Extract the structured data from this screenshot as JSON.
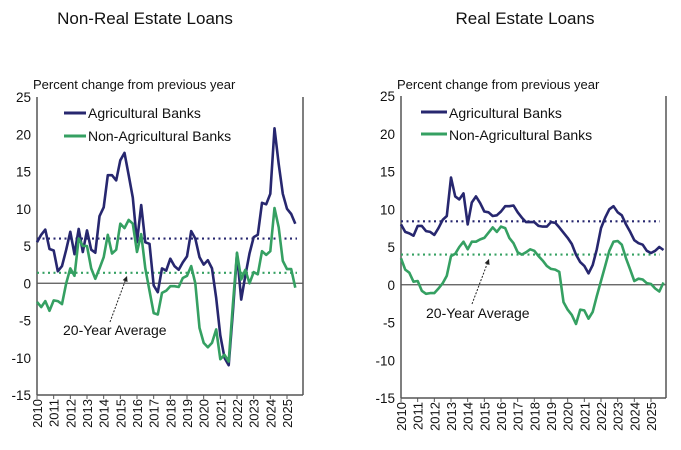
{
  "colors": {
    "agricultural": "#27276f",
    "non_agricultural": "#35a062",
    "axis": "#555555"
  },
  "chart_data": [
    {
      "type": "line",
      "title": "Non-Real Estate Loans",
      "ylabel": "Percent change from previous year",
      "ylim": [
        -15,
        25
      ],
      "yticks": [
        25,
        20,
        15,
        10,
        5,
        0,
        -5,
        -10,
        -15
      ],
      "xticks": [
        "2010",
        "2011",
        "2012",
        "2013",
        "2014",
        "2015",
        "2016",
        "2017",
        "2018",
        "2019",
        "2020",
        "2021",
        "2022",
        "2023",
        "2024",
        "2025"
      ],
      "x_frequency": "quarterly, 2010 Q1 onward",
      "grid": false,
      "legend_placement": "top-left",
      "annotation": "20-Year Average",
      "series": [
        {
          "name": "Agricultural Banks",
          "color_key": "agricultural",
          "average": 6.0,
          "values": [
            5.5,
            6.5,
            7.2,
            4.6,
            4.4,
            1.6,
            2.3,
            4.5,
            6.9,
            3.9,
            7.3,
            4.2,
            7.1,
            4.5,
            4.1,
            9.0,
            10.2,
            14.5,
            14.5,
            13.8,
            16.5,
            17.5,
            14.5,
            11.5,
            5.5,
            10.5,
            5.5,
            5.3,
            -0.3,
            -1.2,
            2.0,
            1.7,
            3.3,
            2.3,
            1.8,
            2.8,
            3.6,
            7.0,
            6.0,
            3.5,
            2.5,
            3.1,
            2.0,
            -2.0,
            -7.0,
            -10.0,
            -11.0,
            -4.0,
            4.0,
            -2.2,
            1.0,
            4.0,
            6.2,
            6.5,
            10.8,
            10.6,
            12.0,
            20.8,
            16.0,
            12.0,
            10.0,
            9.3,
            8.0
          ]
        },
        {
          "name": "Non-Agricultural Banks",
          "color_key": "non_agricultural",
          "average": 1.4,
          "values": [
            -2.5,
            -3.2,
            -2.4,
            -3.7,
            -2.3,
            -2.4,
            -2.8,
            0.0,
            2.0,
            1.0,
            6.0,
            5.0,
            5.0,
            2.0,
            0.6,
            2.0,
            3.5,
            6.5,
            4.0,
            4.5,
            8.0,
            7.4,
            8.5,
            8.0,
            4.2,
            6.6,
            2.0,
            -1.0,
            -4.0,
            -4.2,
            -1.3,
            -1.0,
            -0.4,
            -0.4,
            -0.5,
            0.7,
            1.0,
            2.3,
            0.0,
            -6.0,
            -8.0,
            -8.6,
            -8.0,
            -6.2,
            -10.2,
            -9.6,
            -10.5,
            -3.0,
            4.1,
            0.5,
            1.8,
            0.0,
            1.5,
            1.2,
            4.3,
            3.8,
            4.3,
            10.1,
            7.5,
            3.0,
            1.9,
            1.9,
            -0.6
          ]
        }
      ]
    },
    {
      "type": "line",
      "title": "Real Estate Loans",
      "ylabel": "Percent change from previous year",
      "ylim": [
        -15,
        25
      ],
      "yticks": [
        25,
        20,
        15,
        10,
        5,
        0,
        -5,
        -10,
        -15
      ],
      "xticks": [
        "2010",
        "2011",
        "2012",
        "2013",
        "2014",
        "2015",
        "2016",
        "2017",
        "2018",
        "2019",
        "2020",
        "2021",
        "2022",
        "2023",
        "2024",
        "2025"
      ],
      "x_frequency": "quarterly, 2010 Q1 onward",
      "grid": false,
      "legend_placement": "top-left",
      "annotation": "20-Year Average",
      "series": [
        {
          "name": "Agricultural Banks",
          "color_key": "agricultural",
          "average": 8.4,
          "values": [
            8.0,
            7.0,
            6.8,
            6.5,
            7.8,
            7.8,
            7.1,
            7.0,
            6.6,
            7.5,
            8.6,
            9.1,
            14.2,
            11.7,
            11.3,
            12.1,
            8.0,
            10.9,
            11.7,
            10.8,
            9.7,
            9.6,
            9.1,
            9.2,
            9.7,
            10.4,
            10.4,
            10.5,
            9.6,
            8.9,
            8.3,
            8.3,
            8.3,
            7.8,
            7.7,
            7.7,
            8.3,
            8.2,
            7.6,
            6.9,
            6.2,
            5.4,
            4.0,
            3.0,
            2.5,
            1.5,
            2.6,
            4.7,
            7.5,
            8.9,
            10.0,
            10.4,
            9.6,
            9.2,
            8.0,
            7.0,
            5.9,
            5.5,
            5.3,
            4.5,
            4.2,
            4.5,
            5.0,
            4.6
          ]
        },
        {
          "name": "Non-Agricultural Banks",
          "color_key": "non_agricultural",
          "average": 4.0,
          "values": [
            3.5,
            2.0,
            1.6,
            0.4,
            0.5,
            -0.8,
            -1.2,
            -1.1,
            -1.1,
            -0.5,
            0.2,
            1.2,
            3.8,
            4.1,
            5.0,
            5.7,
            4.7,
            5.7,
            5.7,
            6.0,
            6.2,
            6.9,
            7.6,
            7.0,
            7.7,
            7.5,
            6.2,
            5.5,
            4.3,
            4.0,
            4.3,
            4.7,
            4.5,
            3.8,
            3.2,
            2.5,
            2.1,
            2.0,
            1.7,
            -2.3,
            -3.3,
            -4.0,
            -5.2,
            -3.3,
            -3.4,
            -4.5,
            -3.6,
            -1.5,
            0.5,
            2.5,
            4.5,
            5.7,
            5.8,
            5.3,
            3.5,
            2.0,
            0.5,
            0.8,
            0.7,
            0.2,
            0.1,
            -0.5,
            -0.9,
            0.3
          ]
        }
      ]
    }
  ]
}
